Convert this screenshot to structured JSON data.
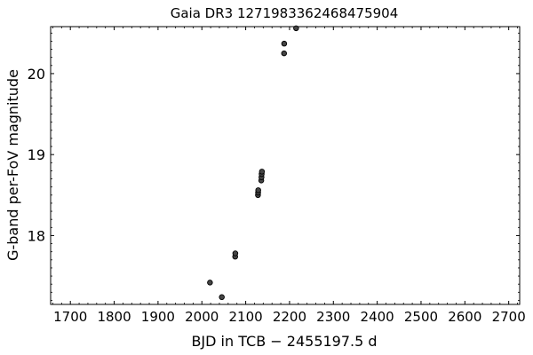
{
  "chart_data": {
    "type": "scatter",
    "title": "Gaia DR3 1271983362468475904",
    "xlabel": "BJD in TCB − 2455197.5 d",
    "ylabel": "G-band per-FoV magnitude",
    "xlim": [
      1655,
      2725
    ],
    "ylim": [
      20.58,
      17.15
    ],
    "y_inverted": true,
    "grid": false,
    "x_ticks": [
      1700,
      1800,
      1900,
      2000,
      2100,
      2200,
      2300,
      2400,
      2500,
      2600,
      2700
    ],
    "y_ticks": [
      18,
      19,
      20
    ],
    "marker_color": "#444444",
    "series": [
      {
        "points": [
          {
            "x": 2018.5,
            "y": 17.42
          },
          {
            "x": 2045.5,
            "y": 17.24
          },
          {
            "x": 2076.0,
            "y": 17.74
          },
          {
            "x": 2076.3,
            "y": 17.78
          },
          {
            "x": 2128.0,
            "y": 18.5
          },
          {
            "x": 2128.3,
            "y": 18.53
          },
          {
            "x": 2128.6,
            "y": 18.56
          },
          {
            "x": 2135.5,
            "y": 18.68
          },
          {
            "x": 2136.0,
            "y": 18.72
          },
          {
            "x": 2136.4,
            "y": 18.76
          },
          {
            "x": 2137.0,
            "y": 18.79
          },
          {
            "x": 2187.5,
            "y": 20.25
          },
          {
            "x": 2187.8,
            "y": 20.37
          },
          {
            "x": 2215.0,
            "y": 20.56
          }
        ]
      }
    ]
  }
}
